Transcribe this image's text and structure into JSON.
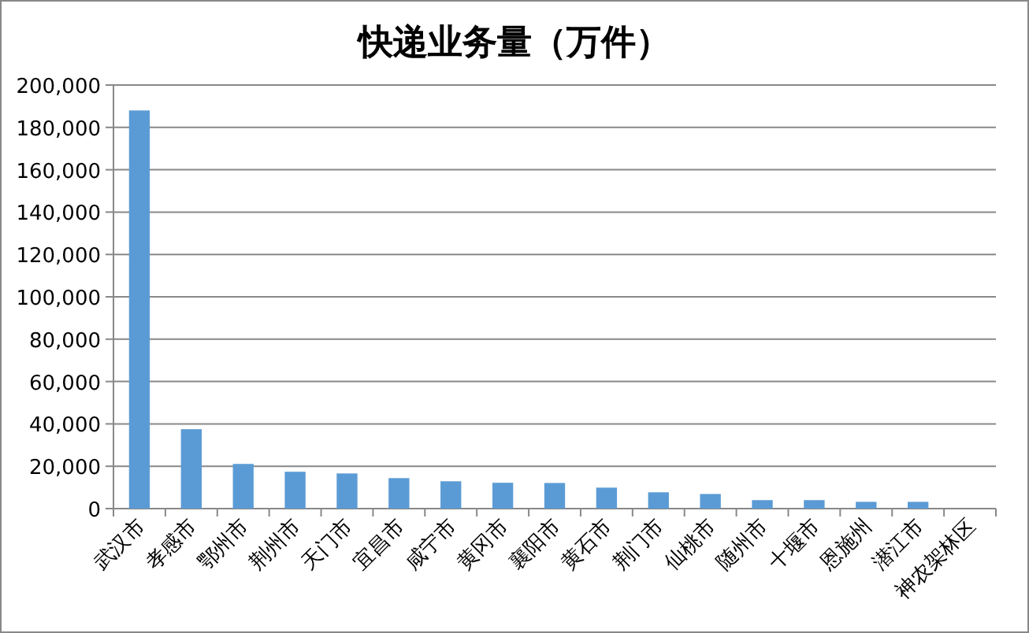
{
  "chart_data": {
    "type": "bar",
    "title": "快递业务量（万件）",
    "categories": [
      "武汉市",
      "孝感市",
      "鄂州市",
      "荆州市",
      "天门市",
      "宜昌市",
      "咸宁市",
      "黄冈市",
      "襄阳市",
      "黄石市",
      "荆门市",
      "仙桃市",
      "随州市",
      "十堰市",
      "恩施州",
      "潜江市",
      "神农架林区"
    ],
    "values": [
      188000,
      37500,
      21100,
      17400,
      16600,
      14400,
      12900,
      12200,
      12100,
      9900,
      7700,
      6900,
      4000,
      4000,
      3200,
      3200,
      null
    ],
    "color": "#5b9bd5",
    "ylim": [
      0,
      200000
    ],
    "yticks": [
      {
        "value": 0,
        "label": "0"
      },
      {
        "value": 20000,
        "label": "20,000"
      },
      {
        "value": 40000,
        "label": "40,000"
      },
      {
        "value": 60000,
        "label": "60,000"
      },
      {
        "value": 80000,
        "label": "80,000"
      },
      {
        "value": 100000,
        "label": "100,000"
      },
      {
        "value": 120000,
        "label": "120,000"
      },
      {
        "value": 140000,
        "label": "140,000"
      },
      {
        "value": 160000,
        "label": "160,000"
      },
      {
        "value": 180000,
        "label": "180,000"
      },
      {
        "value": 200000,
        "label": "200,000"
      }
    ],
    "grid": "y"
  }
}
